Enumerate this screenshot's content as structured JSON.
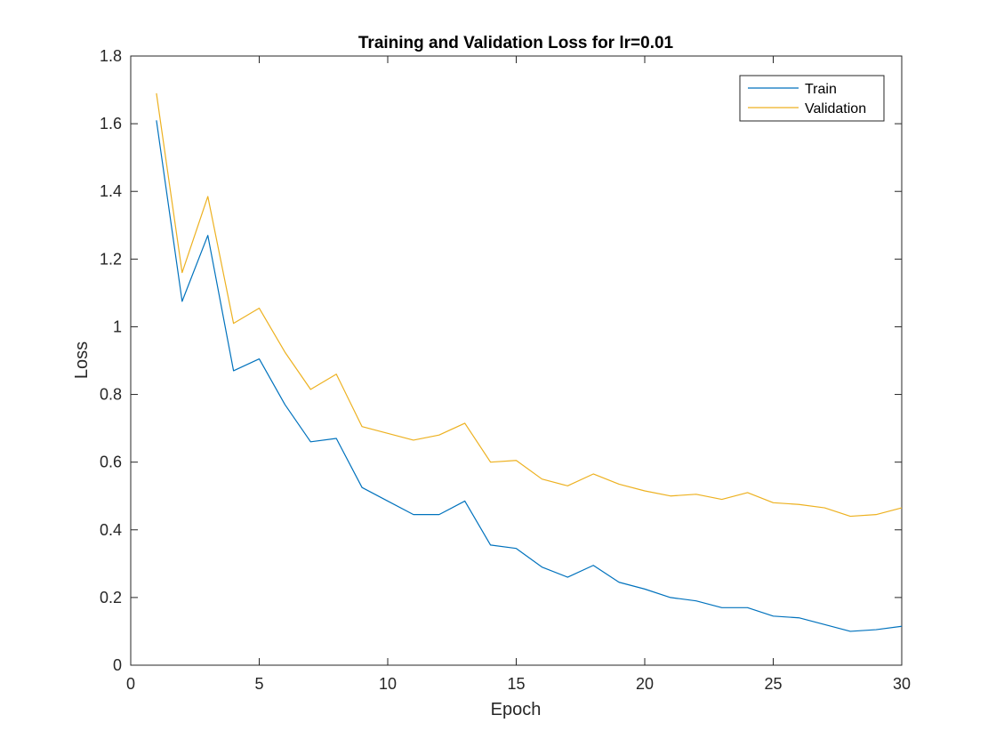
{
  "chart_data": {
    "type": "line",
    "title": "Training and Validation Loss for lr=0.01",
    "xlabel": "Epoch",
    "ylabel": "Loss",
    "xlim": [
      0,
      30
    ],
    "ylim": [
      0,
      1.8
    ],
    "xticks": [
      0,
      5,
      10,
      15,
      20,
      25,
      30
    ],
    "yticks": [
      0,
      0.2,
      0.4,
      0.6,
      0.8,
      1,
      1.2,
      1.4,
      1.6,
      1.8
    ],
    "xtick_labels": [
      "0",
      "5",
      "10",
      "15",
      "20",
      "25",
      "30"
    ],
    "ytick_labels": [
      "0",
      "0.2",
      "0.4",
      "0.6",
      "0.8",
      "1",
      "1.2",
      "1.4",
      "1.6",
      "1.8"
    ],
    "grid": false,
    "legend_position": "top-right",
    "x": [
      1,
      2,
      3,
      4,
      5,
      6,
      7,
      8,
      9,
      10,
      11,
      12,
      13,
      14,
      15,
      16,
      17,
      18,
      19,
      20,
      21,
      22,
      23,
      24,
      25,
      26,
      27,
      28,
      29,
      30
    ],
    "series": [
      {
        "name": "Train",
        "color": "#0072BD",
        "values": [
          1.61,
          1.075,
          1.27,
          0.87,
          0.905,
          0.77,
          0.66,
          0.67,
          0.525,
          0.485,
          0.445,
          0.445,
          0.485,
          0.355,
          0.345,
          0.29,
          0.26,
          0.295,
          0.245,
          0.225,
          0.2,
          0.19,
          0.17,
          0.17,
          0.145,
          0.14,
          0.12,
          0.1,
          0.105,
          0.115
        ]
      },
      {
        "name": "Validation",
        "color": "#EDB120",
        "values": [
          1.69,
          1.16,
          1.385,
          1.01,
          1.055,
          0.925,
          0.815,
          0.86,
          0.705,
          0.685,
          0.665,
          0.68,
          0.715,
          0.6,
          0.605,
          0.55,
          0.53,
          0.565,
          0.535,
          0.515,
          0.5,
          0.505,
          0.49,
          0.51,
          0.48,
          0.475,
          0.465,
          0.44,
          0.445,
          0.465
        ]
      }
    ]
  }
}
